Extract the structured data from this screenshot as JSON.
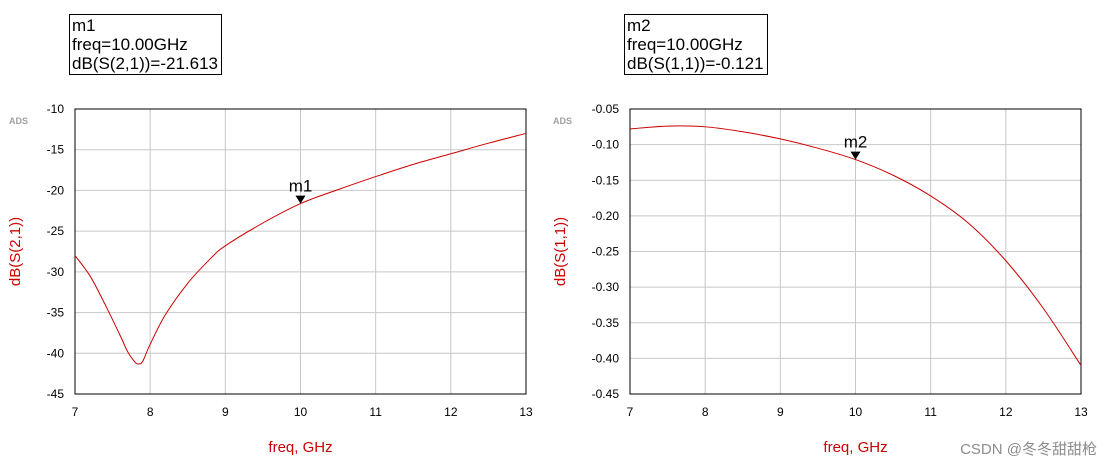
{
  "markers": [
    {
      "name": "m1",
      "freq_text": "freq=10.00GHz",
      "value_text": "dB(S(2,1))=-21.613",
      "x": 10.0,
      "y": -21.613
    },
    {
      "name": "m2",
      "freq_text": "freq=10.00GHz",
      "value_text": "dB(S(1,1))=-0.121",
      "x": 10.0,
      "y": -0.121
    }
  ],
  "chart_data": [
    {
      "type": "line",
      "logo": "ADS",
      "xlabel": "freq, GHz",
      "ylabel": "dB(S(2,1))",
      "xlim": [
        7,
        13
      ],
      "ylim": [
        -45,
        -10
      ],
      "xticks": [
        7,
        8,
        9,
        10,
        11,
        12,
        13
      ],
      "xtick_labels": [
        "7",
        "8",
        "9",
        "10",
        "11",
        "12",
        "13"
      ],
      "yticks": [
        -10,
        -15,
        -20,
        -25,
        -30,
        -35,
        -40,
        -45
      ],
      "ytick_labels": [
        "-10",
        "-15",
        "-20",
        "-25",
        "-30",
        "-35",
        "-40",
        "-45"
      ],
      "grid": true,
      "color": "#cc0000",
      "series": [
        {
          "x": [
            7.0,
            7.2,
            7.4,
            7.6,
            7.7,
            7.8,
            7.85,
            7.9,
            8.0,
            8.2,
            8.5,
            8.8,
            9.0,
            9.5,
            10.0,
            10.5,
            11.0,
            11.5,
            12.0,
            12.5,
            13.0
          ],
          "y": [
            -28.0,
            -30.5,
            -34.0,
            -37.8,
            -39.8,
            -41.1,
            -41.3,
            -41.0,
            -38.9,
            -35.3,
            -31.4,
            -28.4,
            -26.8,
            -24.0,
            -21.613,
            -19.9,
            -18.3,
            -16.8,
            -15.5,
            -14.2,
            -13.0
          ]
        }
      ]
    },
    {
      "type": "line",
      "logo": "ADS",
      "xlabel": "freq, GHz",
      "ylabel": "dB(S(1,1))",
      "xlim": [
        7,
        13
      ],
      "ylim": [
        -0.45,
        -0.05
      ],
      "xticks": [
        7,
        8,
        9,
        10,
        11,
        12,
        13
      ],
      "xtick_labels": [
        "7",
        "8",
        "9",
        "10",
        "11",
        "12",
        "13"
      ],
      "yticks": [
        -0.05,
        -0.1,
        -0.15,
        -0.2,
        -0.25,
        -0.3,
        -0.35,
        -0.4,
        -0.45
      ],
      "ytick_labels": [
        "-0.05",
        "-0.10",
        "-0.15",
        "-0.20",
        "-0.25",
        "-0.30",
        "-0.35",
        "-0.40",
        "-0.45"
      ],
      "grid": true,
      "color": "#cc0000",
      "series": [
        {
          "x": [
            7.0,
            7.5,
            8.0,
            8.5,
            9.0,
            9.5,
            10.0,
            10.5,
            11.0,
            11.5,
            12.0,
            12.5,
            13.0
          ],
          "y": [
            -0.078,
            -0.074,
            -0.075,
            -0.082,
            -0.092,
            -0.105,
            -0.121,
            -0.143,
            -0.172,
            -0.21,
            -0.263,
            -0.33,
            -0.41
          ]
        }
      ]
    }
  ],
  "watermark": "CSDN @冬冬甜甜枪"
}
